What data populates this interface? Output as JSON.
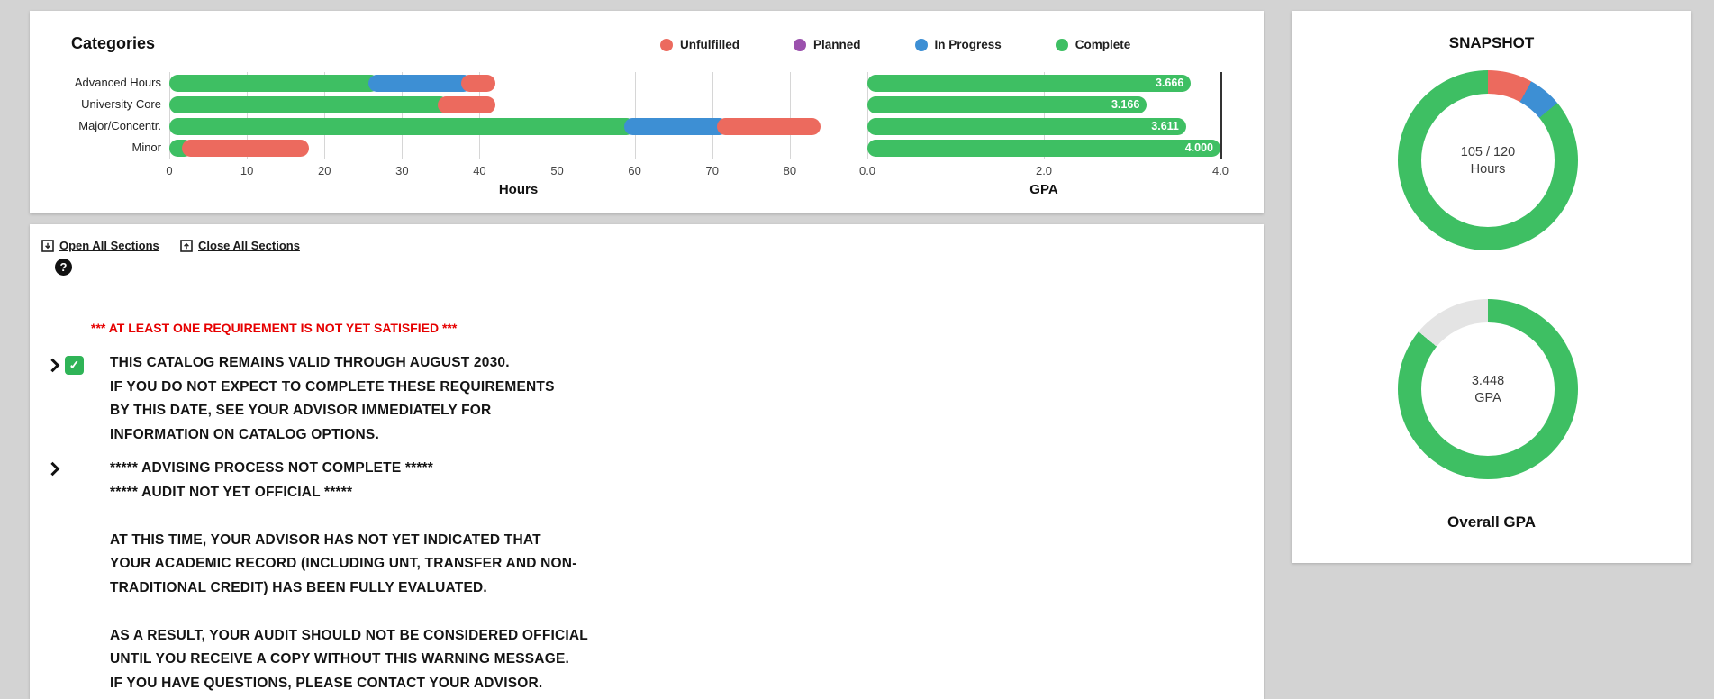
{
  "theme": {
    "bg": "#d3d3d3",
    "panel_bg": "#ffffff",
    "green": "#3ebf63",
    "red": "#ec6a5e",
    "blue": "#3d8fd4",
    "purple": "#9b51ad",
    "gray_segment": "#e4e4e4",
    "warning_red": "#e60000"
  },
  "categories_panel": {
    "title": "Categories",
    "legend": [
      {
        "label": "Unfulfilled",
        "color": "#ec6a5e"
      },
      {
        "label": "Planned",
        "color": "#9b51ad"
      },
      {
        "label": "In Progress",
        "color": "#3d8fd4"
      },
      {
        "label": "Complete",
        "color": "#3ebf63"
      }
    ]
  },
  "chart_data": [
    {
      "type": "bar",
      "orientation": "horizontal",
      "title": "Categories - Hours",
      "xlabel": "Hours",
      "categories": [
        "Advanced Hours",
        "University Core",
        "Major/Concentr.",
        "Minor"
      ],
      "xlim": [
        0,
        90
      ],
      "xticks": [
        "0",
        "10",
        "20",
        "30",
        "40",
        "50",
        "60",
        "70",
        "80"
      ],
      "grid": true,
      "series": [
        {
          "name": "Complete",
          "color": "#3ebf63",
          "values": [
            27,
            36,
            60,
            3
          ]
        },
        {
          "name": "Planned",
          "color": "#9b51ad",
          "values": [
            0,
            0,
            0,
            0
          ]
        },
        {
          "name": "In Progress",
          "color": "#3d8fd4",
          "values": [
            12,
            0,
            12,
            0
          ]
        },
        {
          "name": "Unfulfilled",
          "color": "#ec6a5e",
          "values": [
            3,
            6,
            12,
            15
          ]
        }
      ]
    },
    {
      "type": "bar",
      "orientation": "horizontal",
      "title": "Categories - GPA",
      "xlabel": "GPA",
      "categories": [
        "Advanced Hours",
        "University Core",
        "Major/Concentr.",
        "Minor"
      ],
      "xlim": [
        0,
        4
      ],
      "xticks": [
        "0.0",
        "2.0",
        "4.0"
      ],
      "dark_gridline_at": 4,
      "grid": true,
      "series": [
        {
          "name": "GPA",
          "color": "#3ebf63",
          "values": [
            3.666,
            3.166,
            3.611,
            4.0
          ],
          "value_labels": [
            "3.666",
            "3.166",
            "3.611",
            "4.000"
          ]
        }
      ]
    },
    {
      "type": "pie",
      "subtype": "donut",
      "title": "Hours Snapshot",
      "center_lines": [
        "105 / 120",
        "Hours"
      ],
      "segments": [
        {
          "name": "Unfulfilled",
          "color": "#ec6a5e",
          "pct": 8
        },
        {
          "name": "In Progress",
          "color": "#3d8fd4",
          "pct": 6
        },
        {
          "name": "Complete",
          "color": "#3ebf63",
          "pct": 86
        }
      ]
    },
    {
      "type": "pie",
      "subtype": "donut",
      "title": "Overall GPA",
      "center_lines": [
        "3.448",
        "GPA"
      ],
      "segments": [
        {
          "name": "GPA",
          "color": "#3ebf63",
          "pct": 86
        },
        {
          "name": "Remaining",
          "color": "#e4e4e4",
          "pct": 14
        }
      ]
    }
  ],
  "toolbar": {
    "open_all": "Open All Sections",
    "close_all": "Close All Sections",
    "help": "?"
  },
  "audit": {
    "warning": "*** AT LEAST ONE REQUIREMENT IS NOT YET SATISFIED ***",
    "sections": [
      {
        "status": "complete",
        "lines": [
          "THIS CATALOG REMAINS VALID THROUGH AUGUST 2030.",
          "IF YOU DO NOT EXPECT TO COMPLETE THESE REQUIREMENTS",
          "BY THIS DATE, SEE YOUR ADVISOR IMMEDIATELY FOR",
          "INFORMATION ON CATALOG OPTIONS."
        ]
      },
      {
        "status": "none",
        "lines": [
          "***** ADVISING PROCESS NOT COMPLETE *****",
          "***** AUDIT NOT YET OFFICIAL *****",
          "",
          "AT THIS TIME, YOUR ADVISOR HAS NOT YET INDICATED THAT",
          "YOUR ACADEMIC RECORD (INCLUDING UNT, TRANSFER AND NON-",
          "TRADITIONAL CREDIT) HAS BEEN FULLY EVALUATED.",
          "",
          "AS A RESULT, YOUR AUDIT SHOULD NOT BE CONSIDERED OFFICIAL",
          "UNTIL YOU RECEIVE A COPY WITHOUT THIS WARNING MESSAGE.",
          "IF YOU HAVE QUESTIONS, PLEASE CONTACT YOUR ADVISOR."
        ]
      }
    ]
  },
  "snapshot": {
    "title": "SNAPSHOT",
    "footer": "Overall GPA"
  }
}
